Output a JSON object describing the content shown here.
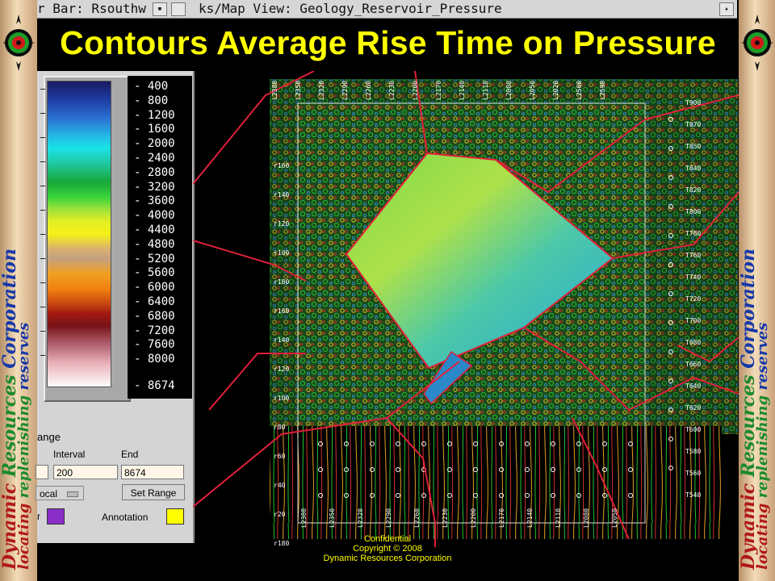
{
  "window_titles": {
    "colorbar": "r Bar: Rsouthw",
    "map_view": "ks/Map View: Geology_Reservoir_Pressure"
  },
  "heading": "Contours Average Rise Time on Pressure",
  "banner": {
    "word1": "Dynamic",
    "word2": "Resources",
    "word3": "Corporation",
    "tag1": "locating",
    "tag2": "replenishing",
    "tag3": "reserves"
  },
  "color_scale": {
    "labels": [
      "400",
      "800",
      "1200",
      "1600",
      "2000",
      "2400",
      "2800",
      "3200",
      "3600",
      "4000",
      "4400",
      "4800",
      "5200",
      "5600",
      "6000",
      "6400",
      "6800",
      "7200",
      "7600",
      "8000",
      "8674"
    ]
  },
  "range": {
    "title": "ange",
    "interval_label": "Interval",
    "end_label": "End",
    "interval_value": "200",
    "end_value": "8674",
    "mode_label": "ocal",
    "set_range_label": "Set Range",
    "r_label": "r",
    "annotation_label": "Annotation"
  },
  "colors": {
    "heading": "#ffff00",
    "r_swatch": "#8a2ec8",
    "annotation_swatch": "#ffff00",
    "boundary": "#e0203a"
  },
  "map": {
    "top_labels": [
      "L2380",
      "L2350",
      "L2320",
      "L2290",
      "L2260",
      "L2230",
      "L2200",
      "L2170",
      "L2140",
      "L2110",
      "L2080",
      "L2050",
      "L2020",
      "L2560",
      "L2590"
    ],
    "right_labels": [
      "T900",
      "T870",
      "T850",
      "T840",
      "T820",
      "T800",
      "T780",
      "T760",
      "T740",
      "T720",
      "T700",
      "T680",
      "T660",
      "T640",
      "T620",
      "T600",
      "T580",
      "T560",
      "T540"
    ],
    "left_labels": [
      "r160",
      "r140",
      "r120",
      "r100",
      "r180",
      "r160",
      "r140",
      "r120",
      "r100",
      "r80",
      "r60",
      "r40",
      "r20",
      "r180"
    ],
    "bottom_labels": [
      "L2380",
      "L2350",
      "L2320",
      "L2290",
      "L2260",
      "L2230",
      "L2200",
      "L2170",
      "L2140",
      "L2110",
      "L2080",
      "L2050"
    ]
  },
  "footer": {
    "line1": "Confidential",
    "line2": "Copyright © 2008",
    "line3": "Dynamic Resources Corporation"
  }
}
